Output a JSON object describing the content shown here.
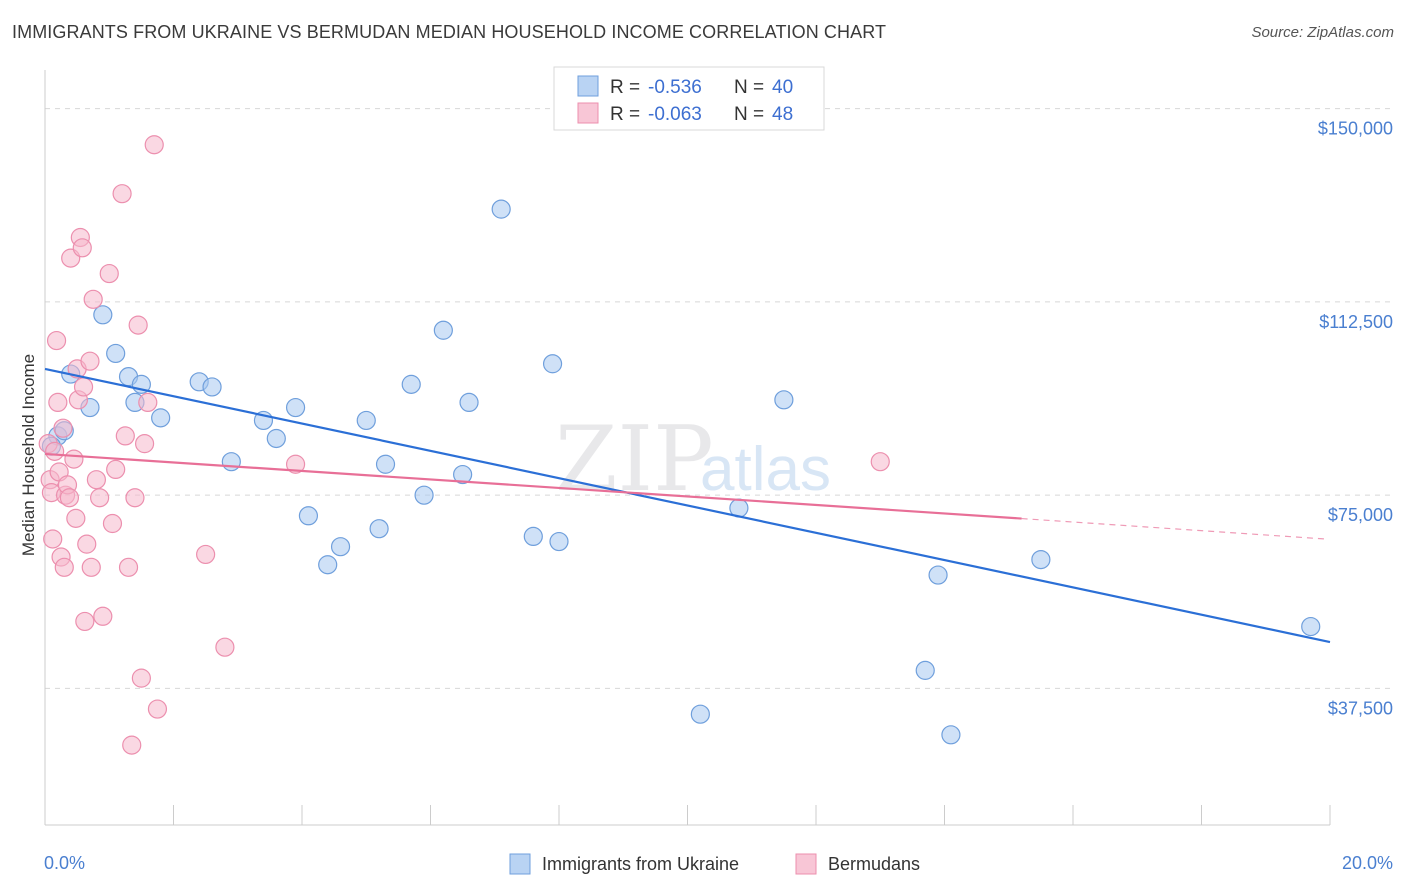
{
  "title": "IMMIGRANTS FROM UKRAINE VS BERMUDAN MEDIAN HOUSEHOLD INCOME CORRELATION CHART",
  "source": "Source: ZipAtlas.com",
  "watermark": {
    "zip": "ZIP",
    "atlas": "atlas"
  },
  "legend_top": [
    {
      "r_label": "R =",
      "r_value": "-0.536",
      "n_label": "N =",
      "n_value": "40",
      "color": "#a8c8f0"
    },
    {
      "r_label": "R =",
      "r_value": "-0.063",
      "n_label": "N =",
      "n_value": "48",
      "color": "#f6b8cc"
    }
  ],
  "chart_data": {
    "type": "scatter",
    "ylabel": "Median Household Income",
    "xlim": [
      0,
      20
    ],
    "ylim": [
      11000,
      157500
    ],
    "x_tick_labels": [
      "0.0%",
      "20.0%"
    ],
    "y_ticks": [
      {
        "value": 37500,
        "label": "$37,500"
      },
      {
        "value": 75000,
        "label": "$75,000"
      },
      {
        "value": 112500,
        "label": "$112,500"
      },
      {
        "value": 150000,
        "label": "$150,000"
      }
    ],
    "grid": true,
    "legend_position": "top-center",
    "series": [
      {
        "name": "Immigrants from Ukraine",
        "color": "#a8c8f0",
        "stroke": "#6f9fdc",
        "line_color": "#2b6fd6",
        "trend": {
          "x0": 0,
          "y0": 99500,
          "x1": 20,
          "y1": 46500,
          "solid_until": 20
        },
        "points": [
          [
            0.2,
            86500
          ],
          [
            0.4,
            98500
          ],
          [
            0.7,
            92000
          ],
          [
            0.9,
            110000
          ],
          [
            1.1,
            102500
          ],
          [
            1.3,
            98000
          ],
          [
            1.4,
            93000
          ],
          [
            1.5,
            96500
          ],
          [
            1.8,
            90000
          ],
          [
            2.4,
            97000
          ],
          [
            2.6,
            96000
          ],
          [
            2.9,
            81500
          ],
          [
            3.4,
            89500
          ],
          [
            3.6,
            86000
          ],
          [
            3.9,
            92000
          ],
          [
            4.1,
            71000
          ],
          [
            4.4,
            61500
          ],
          [
            4.6,
            65000
          ],
          [
            5.0,
            89500
          ],
          [
            5.2,
            68500
          ],
          [
            5.3,
            81000
          ],
          [
            5.7,
            96500
          ],
          [
            5.9,
            75000
          ],
          [
            6.2,
            107000
          ],
          [
            6.5,
            79000
          ],
          [
            6.6,
            93000
          ],
          [
            7.1,
            130500
          ],
          [
            7.6,
            67000
          ],
          [
            7.9,
            100500
          ],
          [
            8.0,
            66000
          ],
          [
            10.2,
            32500
          ],
          [
            10.8,
            72500
          ],
          [
            11.5,
            93500
          ],
          [
            13.7,
            41000
          ],
          [
            13.9,
            59500
          ],
          [
            14.1,
            28500
          ],
          [
            15.5,
            62500
          ],
          [
            19.7,
            49500
          ],
          [
            0.1,
            84500
          ],
          [
            0.3,
            87500
          ]
        ]
      },
      {
        "name": "Bermudans",
        "color": "#f6b8cc",
        "stroke": "#ec8fae",
        "line_color": "#e86f97",
        "trend": {
          "x0": 0,
          "y0": 83000,
          "x1": 20,
          "y1": 66500,
          "solid_until": 15.2
        },
        "points": [
          [
            0.05,
            85000
          ],
          [
            0.08,
            78000
          ],
          [
            0.1,
            75500
          ],
          [
            0.12,
            66500
          ],
          [
            0.15,
            83500
          ],
          [
            0.18,
            105000
          ],
          [
            0.2,
            93000
          ],
          [
            0.22,
            79500
          ],
          [
            0.25,
            63000
          ],
          [
            0.28,
            88000
          ],
          [
            0.3,
            61000
          ],
          [
            0.32,
            75000
          ],
          [
            0.35,
            77000
          ],
          [
            0.38,
            74500
          ],
          [
            0.4,
            121000
          ],
          [
            0.45,
            82000
          ],
          [
            0.48,
            70500
          ],
          [
            0.5,
            99500
          ],
          [
            0.52,
            93500
          ],
          [
            0.55,
            125000
          ],
          [
            0.58,
            123000
          ],
          [
            0.6,
            96000
          ],
          [
            0.62,
            50500
          ],
          [
            0.65,
            65500
          ],
          [
            0.7,
            101000
          ],
          [
            0.72,
            61000
          ],
          [
            0.75,
            113000
          ],
          [
            0.8,
            78000
          ],
          [
            0.85,
            74500
          ],
          [
            0.9,
            51500
          ],
          [
            1.0,
            118000
          ],
          [
            1.05,
            69500
          ],
          [
            1.1,
            80000
          ],
          [
            1.2,
            133500
          ],
          [
            1.25,
            86500
          ],
          [
            1.3,
            61000
          ],
          [
            1.35,
            26500
          ],
          [
            1.4,
            74500
          ],
          [
            1.45,
            108000
          ],
          [
            1.5,
            39500
          ],
          [
            1.55,
            85000
          ],
          [
            1.6,
            93000
          ],
          [
            1.7,
            143000
          ],
          [
            1.75,
            33500
          ],
          [
            2.5,
            63500
          ],
          [
            2.8,
            45500
          ],
          [
            3.9,
            81000
          ],
          [
            13.0,
            81500
          ]
        ]
      }
    ]
  }
}
